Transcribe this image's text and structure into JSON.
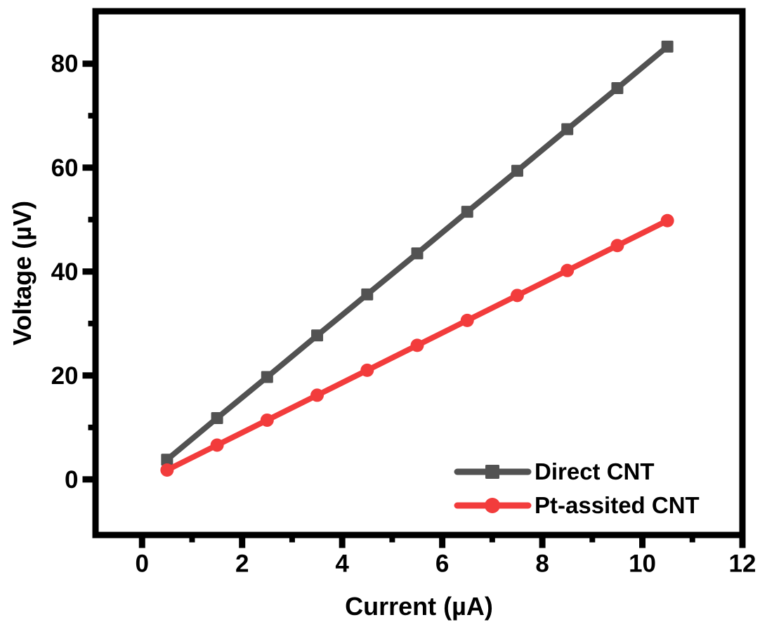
{
  "figure": {
    "background_color": "#ffffff",
    "axis_color": "#000000",
    "text_color": "#000000"
  },
  "chart_data": {
    "type": "line",
    "title": "",
    "xlabel": "Current (µA)",
    "ylabel": "Voltage (µV)",
    "xlim": [
      -0.93,
      12
    ],
    "ylim": [
      -10.7,
      90.1
    ],
    "x_major_ticks": [
      0,
      2,
      4,
      6,
      8,
      10,
      12
    ],
    "x_minor_ticks": [
      1,
      3,
      5,
      7,
      9,
      11
    ],
    "y_major_ticks": [
      0,
      20,
      40,
      60,
      80
    ],
    "y_minor_ticks": [
      10,
      30,
      50,
      70
    ],
    "grid": false,
    "legend_position": "lower-right",
    "x": [
      0.5,
      1.5,
      2.5,
      3.5,
      4.5,
      5.5,
      6.5,
      7.5,
      8.5,
      9.5,
      10.5
    ],
    "series": [
      {
        "name": "Direct CNT",
        "color": "#525252",
        "marker": "square",
        "values": [
          3.8,
          11.8,
          19.7,
          27.7,
          35.6,
          43.5,
          51.5,
          59.4,
          67.4,
          75.3,
          83.3
        ]
      },
      {
        "name": "Pt-assited CNT",
        "color": "#f23c3c",
        "marker": "circle",
        "values": [
          1.8,
          6.6,
          11.4,
          16.2,
          21.0,
          25.8,
          30.6,
          35.4,
          40.2,
          45.0,
          49.8
        ]
      }
    ]
  }
}
